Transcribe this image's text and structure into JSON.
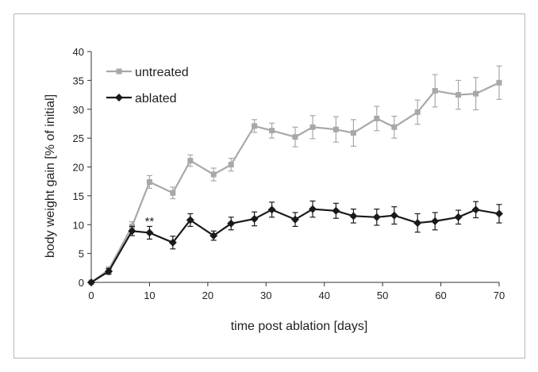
{
  "chart_data": {
    "type": "line",
    "xlabel": "time post ablation [days]",
    "ylabel": "body weight gain [% of initial]",
    "xlim": [
      0,
      70
    ],
    "ylim": [
      0,
      40
    ],
    "xticks": [
      0,
      10,
      20,
      30,
      40,
      50,
      60,
      70
    ],
    "yticks": [
      0,
      5,
      10,
      15,
      20,
      25,
      30,
      35,
      40
    ],
    "grid": false,
    "legend": "top-left",
    "annotations": [
      {
        "text": "**",
        "x": 10,
        "y": 9.6
      }
    ],
    "series": [
      {
        "name": "untreated",
        "color": "#a8a8a8",
        "marker": "square",
        "x": [
          0,
          3,
          7,
          10,
          14,
          17,
          21,
          24,
          28,
          31,
          35,
          38,
          42,
          45,
          49,
          52,
          56,
          59,
          63,
          66,
          70
        ],
        "y": [
          0,
          2.2,
          9.7,
          17.4,
          15.5,
          21.1,
          18.7,
          20.4,
          27.1,
          26.3,
          25.2,
          26.9,
          26.5,
          25.9,
          28.4,
          26.9,
          29.5,
          33.2,
          32.5,
          32.7,
          34.6
        ],
        "err": [
          0,
          0.5,
          0.8,
          1.1,
          1.0,
          1.0,
          1.1,
          1.1,
          1.1,
          1.3,
          1.7,
          2.0,
          2.2,
          2.3,
          2.1,
          1.9,
          2.1,
          2.8,
          2.5,
          2.8,
          2.9
        ]
      },
      {
        "name": "ablated",
        "color": "#1a1a1a",
        "marker": "diamond",
        "x": [
          0,
          3,
          7,
          10,
          14,
          17,
          21,
          24,
          28,
          31,
          35,
          38,
          42,
          45,
          49,
          52,
          56,
          59,
          63,
          66,
          70
        ],
        "y": [
          0,
          1.9,
          8.9,
          8.6,
          6.9,
          10.8,
          8.1,
          10.2,
          11.0,
          12.6,
          10.9,
          12.7,
          12.4,
          11.5,
          11.3,
          11.6,
          10.3,
          10.6,
          11.3,
          12.6,
          11.9
        ],
        "err": [
          0,
          0.5,
          0.8,
          1.1,
          1.1,
          1.1,
          0.8,
          1.1,
          1.2,
          1.3,
          1.2,
          1.4,
          1.3,
          1.2,
          1.4,
          1.5,
          1.6,
          1.5,
          1.2,
          1.4,
          1.6
        ]
      }
    ]
  }
}
